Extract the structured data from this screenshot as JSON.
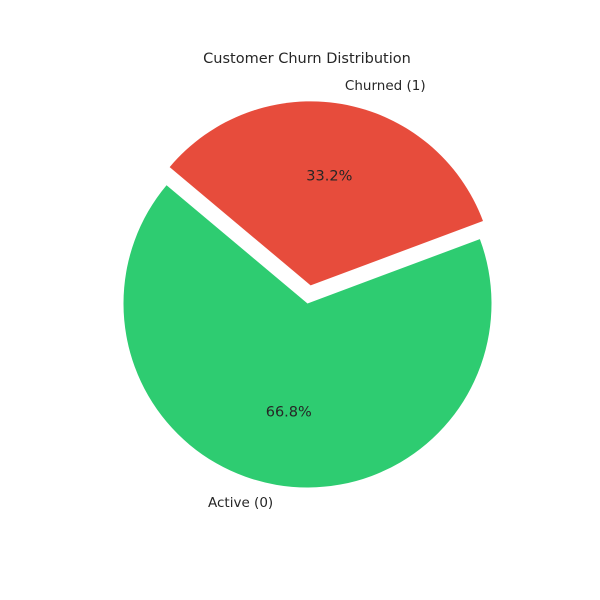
{
  "chart_data": {
    "type": "pie",
    "title": "Customer Churn Distribution",
    "labels": [
      "Active (0)",
      "Churned (1)"
    ],
    "values": [
      66.8,
      33.2
    ],
    "value_labels": [
      "66.8%",
      "33.2%"
    ],
    "colors": [
      "#2ecc71",
      "#e74c3c"
    ],
    "explode": [
      0,
      0.1
    ],
    "start_angle_deg": 140,
    "counterclockwise": true,
    "legend": "none"
  }
}
